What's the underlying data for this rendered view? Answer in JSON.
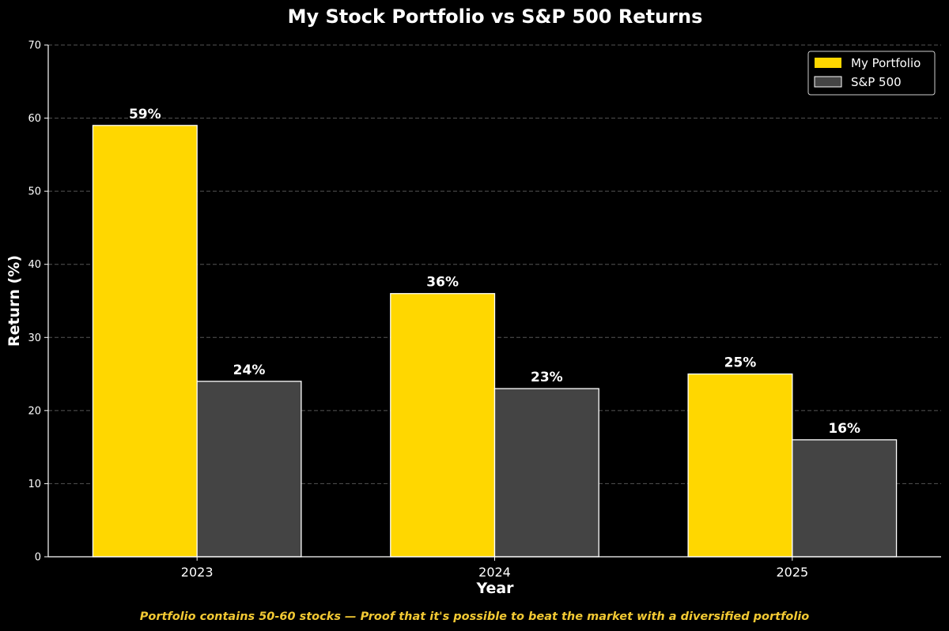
{
  "chart_data": {
    "type": "bar",
    "title": "My Stock Portfolio vs S&P 500 Returns",
    "xlabel": "Year",
    "ylabel": "Return (%)",
    "categories": [
      "2023",
      "2024",
      "2025"
    ],
    "series": [
      {
        "name": "My Portfolio",
        "values": [
          59,
          36,
          25
        ],
        "labels": [
          "59%",
          "36%",
          "25%"
        ],
        "color": "#FFD700"
      },
      {
        "name": "S&P 500",
        "values": [
          24,
          23,
          16
        ],
        "labels": [
          "24%",
          "23%",
          "16%"
        ],
        "color": "#444444"
      }
    ],
    "ylim": [
      0,
      70
    ],
    "yticks": [
      "0",
      "10",
      "20",
      "30",
      "40",
      "50",
      "60",
      "70"
    ],
    "grid": true,
    "legend_position": "top-right",
    "caption": "Portfolio contains 50-60 stocks — Proof that it's possible to beat the market with a diversified portfolio",
    "caption_color": "#F2C933",
    "background": "#000000"
  }
}
